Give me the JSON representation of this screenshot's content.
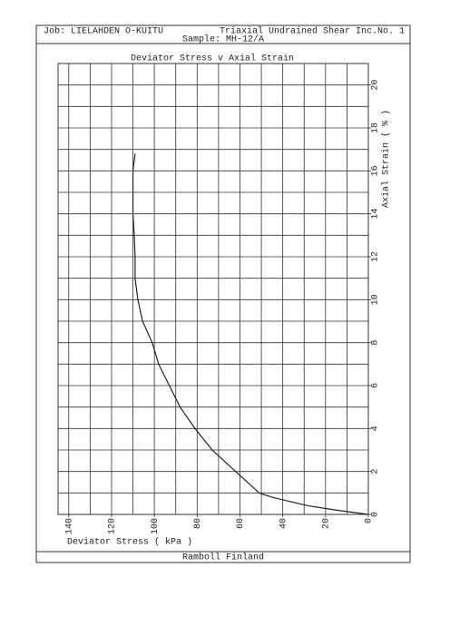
{
  "header": {
    "job": "Job: LIELAHDEN O-KUITU",
    "test": "Triaxial Undrained Shear Inc.No. 1",
    "sample": "Sample: MH-12/A"
  },
  "footer": "Ramboll Finland",
  "chart_data": {
    "type": "line",
    "title": "Deviator Stress v Axial Strain",
    "x_label": "Deviator Stress ( kPa )",
    "y_label": "Axial Strain ( % )",
    "x": [
      0,
      15,
      28,
      45,
      51,
      62,
      73,
      81,
      88,
      93,
      98,
      101,
      105.5,
      107.7,
      109,
      109,
      109.4,
      110,
      110,
      110,
      109
    ],
    "values": [
      0,
      0.2,
      0.4,
      0.8,
      1,
      2,
      3,
      4,
      5,
      6,
      7,
      8,
      9,
      10,
      11,
      12,
      13,
      14,
      15,
      16,
      16.8
    ],
    "color": "#222222",
    "xlim": [
      145,
      0
    ],
    "ylim": [
      0,
      21
    ],
    "xticks": [
      0,
      20,
      40,
      60,
      80,
      100,
      120,
      140
    ],
    "yticks": [
      0,
      2,
      4,
      6,
      8,
      10,
      12,
      14,
      16,
      18,
      20
    ],
    "xgrid": [
      0,
      10,
      20,
      30,
      40,
      50,
      60,
      70,
      80,
      90,
      100,
      110,
      120,
      130,
      140
    ],
    "ygrid": [
      0,
      1,
      2,
      3,
      4,
      5,
      6,
      7,
      8,
      9,
      10,
      11,
      12,
      13,
      14,
      15,
      16,
      17,
      18,
      19,
      20
    ],
    "grid": true
  }
}
